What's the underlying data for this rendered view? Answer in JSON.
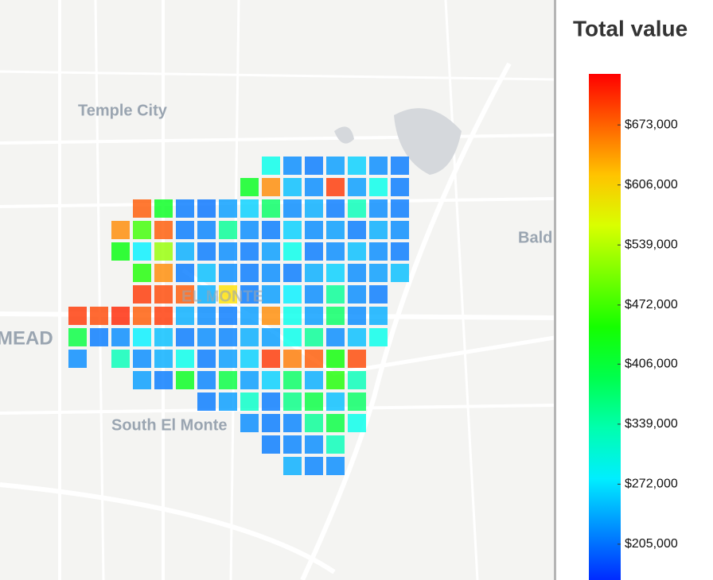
{
  "map": {
    "labels": [
      "Temple City",
      "Bald",
      "MEAD",
      "South El Monte",
      "EL MONTE"
    ]
  },
  "heatmap": {
    "rows": [
      [
        null,
        null,
        null,
        null,
        null,
        null,
        null,
        null,
        null,
        300000,
        220000,
        210000,
        230000,
        260000,
        220000,
        210000
      ],
      [
        null,
        null,
        null,
        null,
        null,
        null,
        null,
        null,
        420000,
        650000,
        250000,
        220000,
        700000,
        230000,
        300000,
        210000
      ],
      [
        null,
        null,
        null,
        680000,
        420000,
        210000,
        205000,
        230000,
        260000,
        380000,
        220000,
        240000,
        210000,
        330000,
        220000,
        210000
      ],
      [
        null,
        null,
        650000,
        470000,
        680000,
        210000,
        215000,
        350000,
        220000,
        210000,
        260000,
        220000,
        230000,
        210000,
        240000,
        220000
      ],
      [
        null,
        null,
        430000,
        280000,
        520000,
        240000,
        210000,
        220000,
        210000,
        230000,
        300000,
        210000,
        220000,
        250000,
        220000,
        210000
      ],
      [
        null,
        null,
        null,
        450000,
        650000,
        210000,
        250000,
        220000,
        210000,
        220000,
        210000,
        240000,
        260000,
        220000,
        230000,
        250000
      ],
      [
        null,
        null,
        null,
        700000,
        690000,
        680000,
        240000,
        600000,
        210000,
        230000,
        280000,
        220000,
        350000,
        220000,
        210000,
        null
      ],
      [
        700000,
        690000,
        710000,
        680000,
        700000,
        240000,
        220000,
        210000,
        230000,
        650000,
        300000,
        230000,
        380000,
        220000,
        240000,
        null
      ],
      [
        400000,
        210000,
        220000,
        280000,
        250000,
        210000,
        220000,
        215000,
        240000,
        230000,
        300000,
        350000,
        220000,
        250000,
        300000,
        null
      ],
      [
        220000,
        null,
        330000,
        220000,
        240000,
        300000,
        210000,
        230000,
        260000,
        700000,
        660000,
        680000,
        440000,
        690000,
        null,
        null
      ],
      [
        null,
        null,
        null,
        230000,
        210000,
        420000,
        215000,
        400000,
        230000,
        260000,
        380000,
        240000,
        450000,
        330000,
        null,
        null
      ],
      [
        null,
        null,
        null,
        null,
        null,
        null,
        210000,
        230000,
        320000,
        210000,
        360000,
        400000,
        250000,
        380000,
        null,
        null
      ],
      [
        null,
        null,
        null,
        null,
        null,
        null,
        null,
        null,
        220000,
        210000,
        215000,
        350000,
        400000,
        300000,
        null,
        null
      ],
      [
        null,
        null,
        null,
        null,
        null,
        null,
        null,
        null,
        null,
        210000,
        215000,
        220000,
        330000,
        null,
        null,
        null
      ],
      [
        null,
        null,
        null,
        null,
        null,
        null,
        null,
        null,
        null,
        null,
        240000,
        215000,
        220000,
        null,
        null,
        null
      ]
    ]
  },
  "legend": {
    "title": "Total value",
    "clim": [
      165000,
      730000
    ],
    "ticks": [
      {
        "value": 205000,
        "label": "$205,000"
      },
      {
        "value": 272000,
        "label": "$272,000"
      },
      {
        "value": 339000,
        "label": "$339,000"
      },
      {
        "value": 406000,
        "label": "$406,000"
      },
      {
        "value": 472000,
        "label": "$472,000"
      },
      {
        "value": 539000,
        "label": "$539,000"
      },
      {
        "value": 606000,
        "label": "$606,000"
      },
      {
        "value": 673000,
        "label": "$673,000"
      }
    ]
  }
}
